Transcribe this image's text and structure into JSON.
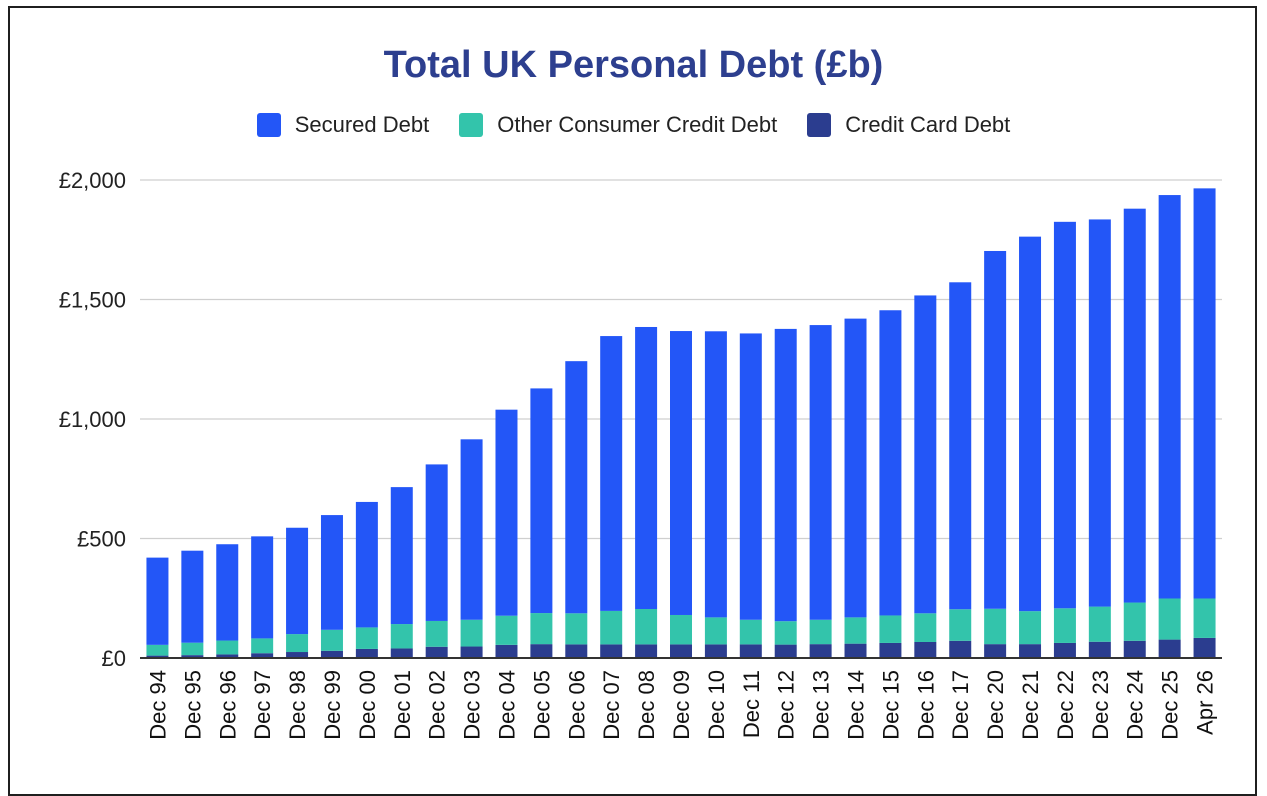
{
  "chart_data": {
    "type": "bar",
    "stacked": true,
    "title": "Total UK Personal Debt (£b)",
    "xlabel": "",
    "ylabel": "",
    "ylim": [
      0,
      2000
    ],
    "yticks": [
      0,
      500,
      1000,
      1500,
      2000
    ],
    "ytick_labels": [
      "£0",
      "£500",
      "£1,000",
      "£1,500",
      "£2,000"
    ],
    "grid": true,
    "legend_position": "top",
    "categories": [
      "Dec 94",
      "Dec 95",
      "Dec 96",
      "Dec 97",
      "Dec 98",
      "Dec 99",
      "Dec 00",
      "Dec 01",
      "Dec 02",
      "Dec 03",
      "Dec 04",
      "Dec 05",
      "Dec 06",
      "Dec 07",
      "Dec 08",
      "Dec 09",
      "Dec 10",
      "Dec 11",
      "Dec 12",
      "Dec 13",
      "Dec 14",
      "Dec 15",
      "Dec 16",
      "Dec 17",
      "Dec 20",
      "Dec 21",
      "Dec 22",
      "Dec 23",
      "Dec 24",
      "Dec 25",
      "Apr 26"
    ],
    "series": [
      {
        "name": "Credit Card Debt",
        "color": "#2b3d8f",
        "values": [
          10,
          12,
          15,
          20,
          25,
          30,
          38,
          40,
          47,
          48,
          55,
          58,
          57,
          57,
          57,
          57,
          57,
          57,
          56,
          58,
          60,
          63,
          67,
          72,
          58,
          58,
          63,
          68,
          72,
          77,
          84
        ]
      },
      {
        "name": "Other Consumer Credit Debt",
        "color": "#33c4ab",
        "values": [
          45,
          52,
          58,
          62,
          75,
          88,
          90,
          102,
          108,
          112,
          122,
          130,
          130,
          140,
          148,
          123,
          113,
          103,
          98,
          102,
          110,
          115,
          120,
          132,
          148,
          138,
          145,
          147,
          160,
          172,
          165
        ]
      },
      {
        "name": "Secured Debt",
        "color": "#2356f7",
        "values": [
          365,
          385,
          403,
          427,
          445,
          480,
          525,
          573,
          655,
          755,
          862,
          940,
          1055,
          1150,
          1180,
          1188,
          1197,
          1198,
          1223,
          1233,
          1250,
          1277,
          1330,
          1368,
          1497,
          1567,
          1617,
          1620,
          1648,
          1688,
          1716
        ]
      }
    ],
    "legend_order": [
      "Secured Debt",
      "Other Consumer Credit Debt",
      "Credit Card Debt"
    ]
  }
}
